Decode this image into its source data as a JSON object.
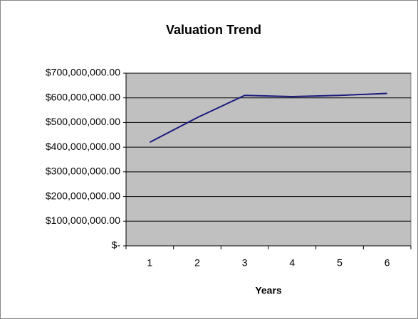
{
  "chart_data": {
    "type": "line",
    "title": "Valuation Trend",
    "x_label": "Years",
    "categories": [
      "1",
      "2",
      "3",
      "4",
      "5",
      "6"
    ],
    "series": [
      {
        "name": "Valuation",
        "color": "#1a1a80",
        "values": [
          420000000,
          520000000,
          610000000,
          605000000,
          610000000,
          618000000
        ]
      }
    ],
    "ylim": [
      0,
      700000000
    ],
    "yticks": [
      {
        "value": 0,
        "label": "$-"
      },
      {
        "value": 100000000,
        "label": "$100,000,000.00"
      },
      {
        "value": 200000000,
        "label": "$200,000,000.00"
      },
      {
        "value": 300000000,
        "label": "$300,000,000.00"
      },
      {
        "value": 400000000,
        "label": "$400,000,000.00"
      },
      {
        "value": 500000000,
        "label": "$500,000,000.00"
      },
      {
        "value": 600000000,
        "label": "$600,000,000.00"
      },
      {
        "value": 700000000,
        "label": "$700,000,000.00"
      }
    ],
    "grid": true,
    "plot_background": "#c0c0c0"
  }
}
